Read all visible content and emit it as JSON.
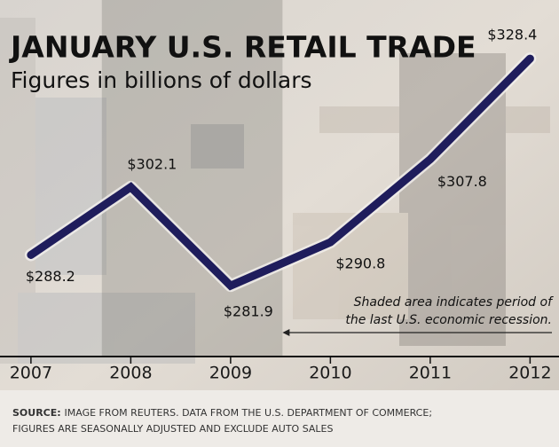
{
  "chart_data": {
    "type": "line",
    "title": "JANUARY U.S. RETAIL TRADE",
    "subtitle": "Figures in billions of dollars",
    "x": [
      2007,
      2008,
      2009,
      2010,
      2011,
      2012
    ],
    "values": [
      288.2,
      302.1,
      281.9,
      290.8,
      307.8,
      328.4
    ],
    "value_labels": [
      "$288.2",
      "$302.1",
      "$281.9",
      "$290.8",
      "$307.8",
      "$328.4"
    ],
    "color": "#1f1d5c",
    "xlim": [
      2006.69,
      2012.29
    ],
    "xticks": [
      2007,
      2008,
      2009,
      2010,
      2011,
      2012
    ],
    "ylim": [
      267.4,
      340.4
    ],
    "shaded_range": [
      2007.71,
      2009.52
    ],
    "annotation": [
      "Shaded area indicates period of",
      "the last U.S. economic recession."
    ],
    "source_label": "SOURCE:",
    "source_lines": [
      "IMAGE FROM REUTERS. DATA FROM THE U.S. DEPARTMENT OF COMMERCE;",
      "FIGURES ARE SEASONALLY ADJUSTED AND EXCLUDE AUTO SALES"
    ]
  }
}
